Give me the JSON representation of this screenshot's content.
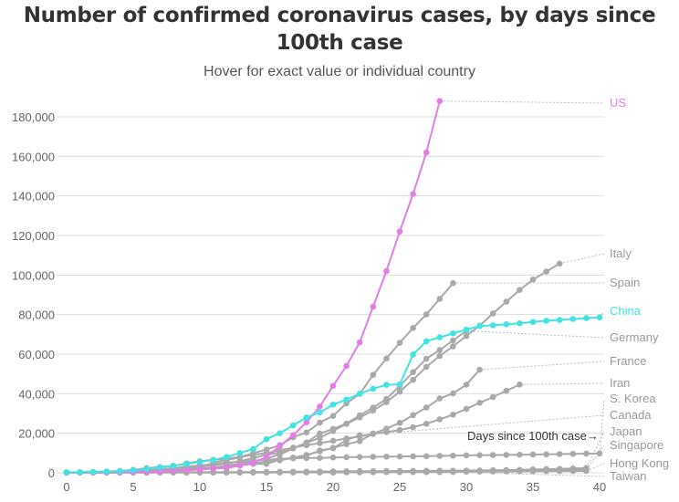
{
  "chart_data": {
    "type": "line",
    "title": "Number of confirmed coronavirus cases, by days since 100th case",
    "subtitle": "Hover for exact value or individual country",
    "annotation": "Days since 100th case→",
    "xlim": [
      0,
      40
    ],
    "ylim": [
      0,
      180000
    ],
    "xticks": [
      0,
      5,
      10,
      15,
      20,
      25,
      30,
      35,
      40
    ],
    "yticks": [
      0,
      20000,
      40000,
      60000,
      80000,
      100000,
      120000,
      140000,
      160000,
      180000
    ],
    "ytick_labels": [
      "0",
      "20,000",
      "40,000",
      "60,000",
      "80,000",
      "100,000",
      "120,000",
      "140,000",
      "160,000",
      "180,000"
    ],
    "grid": "horizontal",
    "legend": "direct labels at right",
    "colors": {
      "US": "#e27ee6",
      "China": "#42e3e3",
      "other": "#a9a9a9"
    },
    "series": [
      {
        "name": "US",
        "values": [
          100,
          130,
          160,
          220,
          320,
          440,
          540,
          700,
          1000,
          1300,
          1700,
          2200,
          2900,
          3700,
          5000,
          8000,
          13500,
          19000,
          25500,
          33500,
          44000,
          54000,
          66000,
          84000,
          102000,
          122000,
          141000,
          162000,
          188000
        ]
      },
      {
        "name": "Italy",
        "values": [
          155,
          229,
          322,
          453,
          655,
          888,
          1128,
          1694,
          2036,
          2502,
          3089,
          3858,
          4636,
          5883,
          7375,
          9172,
          10149,
          12462,
          15113,
          17660,
          21157,
          24747,
          27980,
          31506,
          35713,
          41035,
          47021,
          53578,
          59138,
          63927,
          69176,
          74386,
          80589,
          86498,
          92472,
          97689,
          101739,
          105792
        ]
      },
      {
        "name": "Spain",
        "values": [
          120,
          165,
          222,
          259,
          400,
          500,
          673,
          1073,
          1695,
          2277,
          2277,
          5232,
          6391,
          7798,
          9942,
          11748,
          13910,
          17963,
          20410,
          25374,
          28768,
          35136,
          39885,
          49515,
          57786,
          65719,
          73235,
          80110,
          87956,
          95923
        ]
      },
      {
        "name": "China",
        "values": [
          200,
          300,
          440,
          570,
          830,
          1290,
          1990,
          2740,
          3500,
          4500,
          5500,
          6500,
          8000,
          10000,
          12000,
          17000,
          20000,
          24000,
          28000,
          30500,
          34500,
          37000,
          40000,
          42500,
          44500,
          44700,
          59800,
          66500,
          68500,
          70500,
          72400,
          74200,
          74600,
          75100,
          75600,
          76300,
          76900,
          77300,
          77800,
          78200,
          78600
        ]
      },
      {
        "name": "Germany",
        "values": [
          130,
          159,
          196,
          262,
          482,
          670,
          799,
          1040,
          1176,
          1457,
          1908,
          2078,
          3675,
          4585,
          5795,
          7272,
          9257,
          12327,
          15320,
          19848,
          22213,
          24873,
          29056,
          32986,
          37323,
          43938,
          50871,
          57695,
          62095,
          66885,
          71808
        ]
      },
      {
        "name": "France",
        "values": [
          100,
          130,
          191,
          204,
          285,
          377,
          653,
          949,
          1126,
          1209,
          1784,
          2281,
          2281,
          3661,
          4469,
          4499,
          6633,
          7652,
          9043,
          10871,
          12612,
          14459,
          16018,
          19856,
          22304,
          25233,
          29155,
          32964,
          37575,
          40174,
          44550,
          52128
        ]
      },
      {
        "name": "Iran",
        "values": [
          139,
          245,
          388,
          593,
          978,
          1501,
          2336,
          2922,
          3513,
          4747,
          5823,
          6566,
          7161,
          8042,
          9000,
          10075,
          11364,
          12729,
          13938,
          14991,
          16169,
          17361,
          18407,
          19644,
          20610,
          21638,
          23049,
          24811,
          27017,
          29406,
          32332,
          35408,
          38309,
          41495,
          44605
        ]
      },
      {
        "name": "S. Korea",
        "values": [
          104,
          204,
          433,
          602,
          833,
          977,
          1261,
          1766,
          2337,
          3150,
          3736,
          4335,
          5186,
          5621,
          6088,
          6593,
          7041,
          7314,
          7478,
          7513,
          7755,
          7869,
          7979,
          8086,
          8162,
          8236,
          8320,
          8413,
          8565,
          8652,
          8799,
          8897,
          8961,
          9037,
          9137,
          9241,
          9332,
          9478,
          9583,
          9661,
          9786
        ]
      },
      {
        "name": "Canada",
        "values": [
          103,
          138,
          176,
          252,
          341,
          441,
          598,
          727,
          1087,
          1470,
          2088,
          2790,
          3409,
          4043,
          4757,
          5655,
          6320,
          7448,
          8612,
          11284,
          12437,
          16563,
          19000
        ]
      },
      {
        "name": "Japan",
        "values": [
          105,
          132,
          144,
          157,
          164,
          186,
          210,
          230,
          239,
          254,
          268,
          284,
          317,
          349,
          408,
          455,
          514,
          568,
          619,
          675,
          716,
          780,
          814,
          829,
          873,
          902,
          950,
          1007,
          1054,
          1086,
          1128,
          1193,
          1291,
          1387,
          1499,
          1693,
          1866,
          1953,
          2178,
          2381
        ]
      },
      {
        "name": "Singapore",
        "values": [
          102,
          106,
          108,
          110,
          112,
          117,
          130,
          138,
          150,
          160,
          166,
          178,
          187,
          200,
          212,
          226,
          243,
          266,
          313,
          345,
          385,
          432,
          455,
          509,
          558,
          631,
          683,
          732,
          802,
          844,
          879,
          926,
          1000,
          1049,
          1114,
          1189,
          1309,
          1375,
          1481,
          1623
        ]
      },
      {
        "name": "Hong Kong",
        "values": [
          100,
          104,
          105,
          106,
          108,
          114,
          115,
          120,
          126,
          129,
          130,
          131,
          132,
          134,
          138,
          141,
          145,
          148,
          155,
          157,
          162,
          208,
          256,
          273,
          317,
          356,
          386,
          410,
          453,
          519,
          582,
          641,
          682,
          714,
          765,
          802,
          845,
          862,
          890,
          935
        ]
      },
      {
        "name": "Taiwan",
        "values": [
          100,
          108,
          135,
          153,
          169,
          195,
          215,
          235,
          252,
          267,
          283,
          298,
          306,
          322,
          329,
          339,
          348,
          355,
          363,
          373,
          376,
          379,
          380,
          382,
          385,
          388,
          393,
          395,
          395,
          398
        ]
      }
    ]
  }
}
